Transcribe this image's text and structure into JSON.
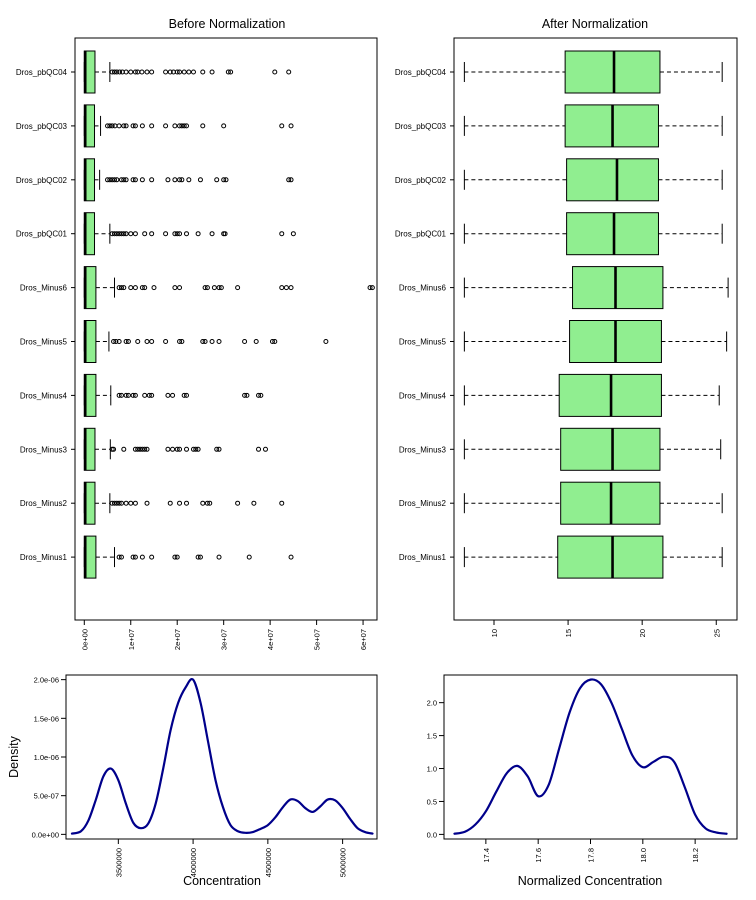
{
  "colors": {
    "box_fill": "#90ee90",
    "density_line": "#00008b",
    "ink": "#000000"
  },
  "chart_data": [
    {
      "id": "before",
      "type": "boxplot",
      "orientation": "horizontal",
      "title": "Before Normalization",
      "xlabel": "",
      "ylabel": "",
      "xlim": [
        -2000000,
        63000000
      ],
      "xticks": [
        0,
        10000000,
        20000000,
        30000000,
        40000000,
        50000000,
        60000000
      ],
      "xtick_labels": [
        "0e+00",
        "1e+07",
        "2e+07",
        "3e+07",
        "4e+07",
        "5e+07",
        "6e+07"
      ],
      "categories": [
        "Dros_pbQC04",
        "Dros_pbQC03",
        "Dros_pbQC02",
        "Dros_pbQC01",
        "Dros_Minus6",
        "Dros_Minus5",
        "Dros_Minus4",
        "Dros_Minus3",
        "Dros_Minus2",
        "Dros_Minus1"
      ],
      "boxes": [
        {
          "min": 0,
          "q1": 0,
          "median": 200000,
          "q3": 2300000,
          "max": 5500000,
          "outliers": [
            6000000,
            6500000,
            7000000,
            7600000,
            8200000,
            9000000,
            10000000,
            11000000,
            11500000,
            12400000,
            13500000,
            14500000,
            17500000,
            18500000,
            19200000,
            20000000,
            20500000,
            21500000,
            22500000,
            23500000,
            25500000,
            27500000,
            31000000,
            31500000,
            41000000,
            44000000
          ]
        },
        {
          "min": 0,
          "q1": 0,
          "median": 200000,
          "q3": 2200000,
          "max": 3500000,
          "outliers": [
            5000000,
            5500000,
            6000000,
            6600000,
            7500000,
            8500000,
            9000000,
            10500000,
            11000000,
            12500000,
            14500000,
            17500000,
            19500000,
            20500000,
            21000000,
            21500000,
            22000000,
            25500000,
            30000000,
            42500000,
            44500000
          ]
        },
        {
          "min": 0,
          "q1": 0,
          "median": 200000,
          "q3": 2200000,
          "max": 3300000,
          "outliers": [
            5000000,
            5500000,
            6000000,
            6500000,
            7000000,
            8000000,
            8500000,
            9000000,
            10500000,
            11000000,
            12500000,
            14500000,
            18000000,
            19500000,
            20500000,
            21000000,
            22500000,
            25000000,
            28500000,
            30000000,
            30500000,
            44000000,
            44500000
          ]
        },
        {
          "min": 0,
          "q1": 0,
          "median": 200000,
          "q3": 2200000,
          "max": 5500000,
          "outliers": [
            6000000,
            6500000,
            7000000,
            7500000,
            8000000,
            8500000,
            9000000,
            10000000,
            11000000,
            13000000,
            14500000,
            17500000,
            19500000,
            20000000,
            20500000,
            22000000,
            24500000,
            27500000,
            30000000,
            30300000,
            42500000,
            45000000
          ]
        },
        {
          "min": 0,
          "q1": 0,
          "median": 200000,
          "q3": 2500000,
          "max": 6500000,
          "outliers": [
            7500000,
            8000000,
            8500000,
            10000000,
            11000000,
            12500000,
            13000000,
            15000000,
            19500000,
            20500000,
            26000000,
            26500000,
            28000000,
            29000000,
            29500000,
            33000000,
            42500000,
            43500000,
            44500000,
            61500000,
            62000000
          ]
        },
        {
          "min": 0,
          "q1": 0,
          "median": 200000,
          "q3": 2500000,
          "max": 5300000,
          "outliers": [
            6300000,
            6800000,
            7500000,
            9000000,
            9500000,
            11500000,
            13500000,
            14500000,
            17500000,
            20500000,
            21000000,
            25500000,
            26000000,
            27500000,
            29000000,
            34500000,
            37000000,
            40500000,
            41000000,
            52000000
          ]
        },
        {
          "min": 0,
          "q1": 0,
          "median": 200000,
          "q3": 2500000,
          "max": 5700000,
          "outliers": [
            7500000,
            8000000,
            9000000,
            9500000,
            10500000,
            11000000,
            13000000,
            14000000,
            14500000,
            18000000,
            19000000,
            21500000,
            22000000,
            34500000,
            35000000,
            37500000,
            38000000
          ]
        },
        {
          "min": 0,
          "q1": 0,
          "median": 200000,
          "q3": 2300000,
          "max": 5600000,
          "outliers": [
            6000000,
            6300000,
            8500000,
            11000000,
            11500000,
            12000000,
            12500000,
            13000000,
            13500000,
            18000000,
            19000000,
            20000000,
            20500000,
            22000000,
            23500000,
            24000000,
            24500000,
            28500000,
            29000000,
            37500000,
            39000000
          ]
        },
        {
          "min": 0,
          "q1": 0,
          "median": 200000,
          "q3": 2300000,
          "max": 5500000,
          "outliers": [
            6000000,
            6500000,
            7000000,
            7500000,
            8000000,
            9000000,
            10000000,
            11000000,
            13500000,
            18500000,
            20500000,
            22000000,
            25500000,
            26500000,
            27000000,
            33000000,
            36500000,
            42500000
          ]
        },
        {
          "min": 0,
          "q1": 0,
          "median": 200000,
          "q3": 2500000,
          "max": 6500000,
          "outliers": [
            7500000,
            8000000,
            10500000,
            11000000,
            12500000,
            14500000,
            19500000,
            20000000,
            24500000,
            25000000,
            29000000,
            35500000,
            44500000
          ]
        }
      ]
    },
    {
      "id": "after",
      "type": "boxplot",
      "orientation": "horizontal",
      "title": "After Normalization",
      "xlabel": "",
      "ylabel": "",
      "xlim": [
        7.3,
        26.4
      ],
      "xticks": [
        10,
        15,
        20,
        25
      ],
      "xtick_labels": [
        "10",
        "15",
        "20",
        "25"
      ],
      "categories": [
        "Dros_pbQC04",
        "Dros_pbQC03",
        "Dros_pbQC02",
        "Dros_pbQC01",
        "Dros_Minus6",
        "Dros_Minus5",
        "Dros_Minus4",
        "Dros_Minus3",
        "Dros_Minus2",
        "Dros_Minus1"
      ],
      "boxes": [
        {
          "min": 8.0,
          "q1": 14.8,
          "median": 18.1,
          "q3": 21.2,
          "max": 25.4,
          "outliers": []
        },
        {
          "min": 8.0,
          "q1": 14.8,
          "median": 18.0,
          "q3": 21.1,
          "max": 25.4,
          "outliers": []
        },
        {
          "min": 8.0,
          "q1": 14.9,
          "median": 18.3,
          "q3": 21.1,
          "max": 25.4,
          "outliers": []
        },
        {
          "min": 8.0,
          "q1": 14.9,
          "median": 18.1,
          "q3": 21.1,
          "max": 25.4,
          "outliers": []
        },
        {
          "min": 8.0,
          "q1": 15.3,
          "median": 18.2,
          "q3": 21.4,
          "max": 25.8,
          "outliers": []
        },
        {
          "min": 8.0,
          "q1": 15.1,
          "median": 18.2,
          "q3": 21.3,
          "max": 25.7,
          "outliers": []
        },
        {
          "min": 8.0,
          "q1": 14.4,
          "median": 17.9,
          "q3": 21.3,
          "max": 25.2,
          "outliers": []
        },
        {
          "min": 8.0,
          "q1": 14.5,
          "median": 18.0,
          "q3": 21.2,
          "max": 25.3,
          "outliers": []
        },
        {
          "min": 8.0,
          "q1": 14.5,
          "median": 17.9,
          "q3": 21.2,
          "max": 25.4,
          "outliers": []
        },
        {
          "min": 8.0,
          "q1": 14.3,
          "median": 18.0,
          "q3": 21.4,
          "max": 25.4,
          "outliers": []
        }
      ]
    },
    {
      "id": "density_raw",
      "type": "line",
      "title": "",
      "xlabel": "Concentration",
      "ylabel": "Density",
      "xlim": [
        3150000,
        5230000
      ],
      "ylim": [
        -6e-08,
        2.06e-06
      ],
      "xticks": [
        3500000,
        4000000,
        4500000,
        5000000
      ],
      "xtick_labels": [
        "3500000",
        "4000000",
        "4500000",
        "5000000"
      ],
      "yticks": [
        0,
        5e-07,
        1e-06,
        1.5e-06,
        2e-06
      ],
      "ytick_labels": [
        "0.0e+00",
        "5.0e-07",
        "1.0e-06",
        "1.5e-06",
        "2.0e-06"
      ],
      "x": [
        3190000,
        3250000,
        3300000,
        3350000,
        3400000,
        3450000,
        3500000,
        3550000,
        3600000,
        3650000,
        3700000,
        3750000,
        3800000,
        3850000,
        3900000,
        3950000,
        4000000,
        4050000,
        4100000,
        4150000,
        4200000,
        4250000,
        4300000,
        4350000,
        4400000,
        4450000,
        4500000,
        4550000,
        4600000,
        4650000,
        4700000,
        4750000,
        4800000,
        4850000,
        4900000,
        4950000,
        5000000,
        5050000,
        5100000,
        5150000,
        5200000
      ],
      "y": [
        1e-08,
        4e-08,
        1.8e-07,
        4.5e-07,
        7.5e-07,
        8.5e-07,
        7e-07,
        4e-07,
        1.5e-07,
        8e-08,
        1.4e-07,
        4e-07,
        8.5e-07,
        1.35e-06,
        1.7e-06,
        1.9e-06,
        2e-06,
        1.7e-06,
        1.2e-06,
        7e-07,
        3.5e-07,
        1.2e-07,
        4e-08,
        2e-08,
        3e-08,
        7e-08,
        1.2e-07,
        2.2e-07,
        3.5e-07,
        4.5e-07,
        4.3e-07,
        3.4e-07,
        2.9e-07,
        3.6e-07,
        4.5e-07,
        4.4e-07,
        3.4e-07,
        2e-07,
        8e-08,
        3e-08,
        1e-08
      ]
    },
    {
      "id": "density_norm",
      "type": "line",
      "title": "",
      "xlabel": "Normalized Concentration",
      "ylabel": "",
      "xlim": [
        17.24,
        18.36
      ],
      "ylim": [
        -0.07,
        2.42
      ],
      "xticks": [
        17.4,
        17.6,
        17.8,
        18.0,
        18.2
      ],
      "xtick_labels": [
        "17.4",
        "17.6",
        "17.8",
        "18.0",
        "18.2"
      ],
      "yticks": [
        0,
        0.5,
        1.0,
        1.5,
        2.0
      ],
      "ytick_labels": [
        "0.0",
        "0.5",
        "1.0",
        "1.5",
        "2.0"
      ],
      "x": [
        17.28,
        17.32,
        17.36,
        17.4,
        17.44,
        17.48,
        17.52,
        17.56,
        17.6,
        17.64,
        17.68,
        17.72,
        17.76,
        17.8,
        17.84,
        17.88,
        17.92,
        17.96,
        18.0,
        18.04,
        18.08,
        18.12,
        18.16,
        18.2,
        18.24,
        18.28,
        18.32
      ],
      "y": [
        0.01,
        0.04,
        0.15,
        0.35,
        0.65,
        0.93,
        1.04,
        0.88,
        0.58,
        0.75,
        1.3,
        1.85,
        2.22,
        2.35,
        2.28,
        2.0,
        1.6,
        1.2,
        1.02,
        1.1,
        1.18,
        1.1,
        0.72,
        0.3,
        0.09,
        0.03,
        0.01
      ]
    }
  ]
}
